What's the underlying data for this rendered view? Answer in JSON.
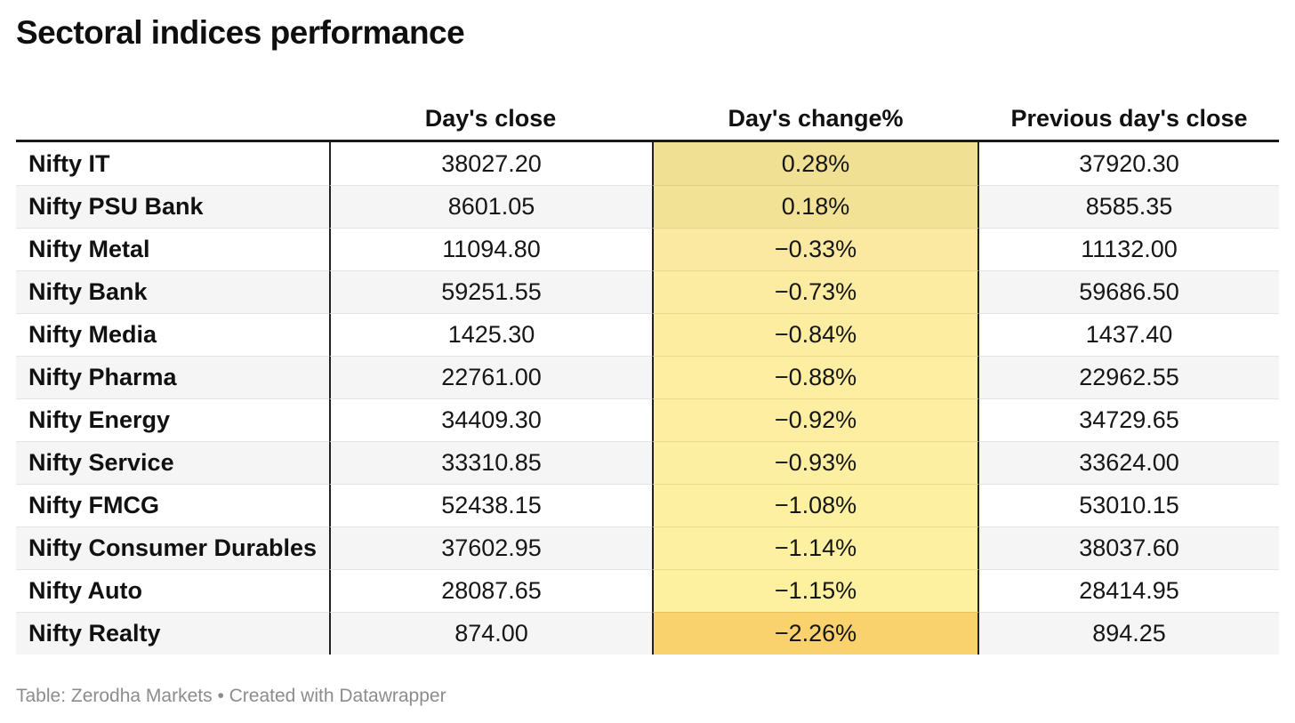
{
  "title": "Sectoral indices performance",
  "chart_data": {
    "type": "table",
    "title": "Sectoral indices performance",
    "categories": [
      "Nifty IT",
      "Nifty PSU Bank",
      "Nifty Metal",
      "Nifty Bank",
      "Nifty Media",
      "Nifty Pharma",
      "Nifty Energy",
      "Nifty Service",
      "Nifty FMCG",
      "Nifty Consumer Durables",
      "Nifty Auto",
      "Nifty Realty"
    ],
    "series": [
      {
        "name": "Day's close",
        "values": [
          38027.2,
          8601.05,
          11094.8,
          59251.55,
          1425.3,
          22761.0,
          34409.3,
          33310.85,
          52438.15,
          37602.95,
          28087.65,
          874.0
        ]
      },
      {
        "name": "Day's change%",
        "values": [
          0.28,
          0.18,
          -0.33,
          -0.73,
          -0.84,
          -0.88,
          -0.92,
          -0.93,
          -1.08,
          -1.14,
          -1.15,
          -2.26
        ]
      },
      {
        "name": "Previous day's close",
        "values": [
          37920.3,
          8585.35,
          11132.0,
          59686.5,
          1437.4,
          22962.55,
          34729.65,
          33624.0,
          53010.15,
          38037.6,
          28414.95,
          894.25
        ]
      }
    ],
    "heatmap_column": "Day's change%",
    "heatmap_colors": [
      "#f0e093",
      "#f1e295",
      "#fbe9a2",
      "#fceca1",
      "#fceda1",
      "#fdeea2",
      "#fdeea2",
      "#fdefa2",
      "#fdf0a1",
      "#fdf0a0",
      "#fdf1a0",
      "#fad26d"
    ],
    "layout": {
      "row_stripe_color": "#f5f5f5",
      "rule_color": "#212121",
      "top_border_color": "#1a1a1a"
    }
  },
  "table": {
    "columns": [
      "",
      "Day's close",
      "Day's change%",
      "Previous day's close"
    ],
    "rows": [
      {
        "label": "Nifty IT",
        "close": "38027.20",
        "change": "0.28%",
        "prev": "37920.30",
        "cell_color": "#f0e093"
      },
      {
        "label": "Nifty PSU Bank",
        "close": "8601.05",
        "change": "0.18%",
        "prev": "8585.35",
        "cell_color": "#f1e295"
      },
      {
        "label": "Nifty Metal",
        "close": "11094.80",
        "change": "−0.33%",
        "prev": "11132.00",
        "cell_color": "#fbe9a2"
      },
      {
        "label": "Nifty Bank",
        "close": "59251.55",
        "change": "−0.73%",
        "prev": "59686.50",
        "cell_color": "#fceca1"
      },
      {
        "label": "Nifty Media",
        "close": "1425.30",
        "change": "−0.84%",
        "prev": "1437.40",
        "cell_color": "#fceda1"
      },
      {
        "label": "Nifty Pharma",
        "close": "22761.00",
        "change": "−0.88%",
        "prev": "22962.55",
        "cell_color": "#fdeea2"
      },
      {
        "label": "Nifty Energy",
        "close": "34409.30",
        "change": "−0.92%",
        "prev": "34729.65",
        "cell_color": "#fdeea2"
      },
      {
        "label": "Nifty Service",
        "close": "33310.85",
        "change": "−0.93%",
        "prev": "33624.00",
        "cell_color": "#fdefa2"
      },
      {
        "label": "Nifty FMCG",
        "close": "52438.15",
        "change": "−1.08%",
        "prev": "53010.15",
        "cell_color": "#fdf0a1"
      },
      {
        "label": "Nifty Consumer Durables",
        "close": "37602.95",
        "change": "−1.14%",
        "prev": "38037.60",
        "cell_color": "#fdf0a0"
      },
      {
        "label": "Nifty Auto",
        "close": "28087.65",
        "change": "−1.15%",
        "prev": "28414.95",
        "cell_color": "#fdf1a0"
      },
      {
        "label": "Nifty Realty",
        "close": "874.00",
        "change": "−2.26%",
        "prev": "894.25",
        "cell_color": "#fad26d"
      }
    ]
  },
  "footer": {
    "prefix": "Table: ",
    "source": "Zerodha Markets",
    "separator": " • Created with ",
    "credit": "Datawrapper"
  }
}
